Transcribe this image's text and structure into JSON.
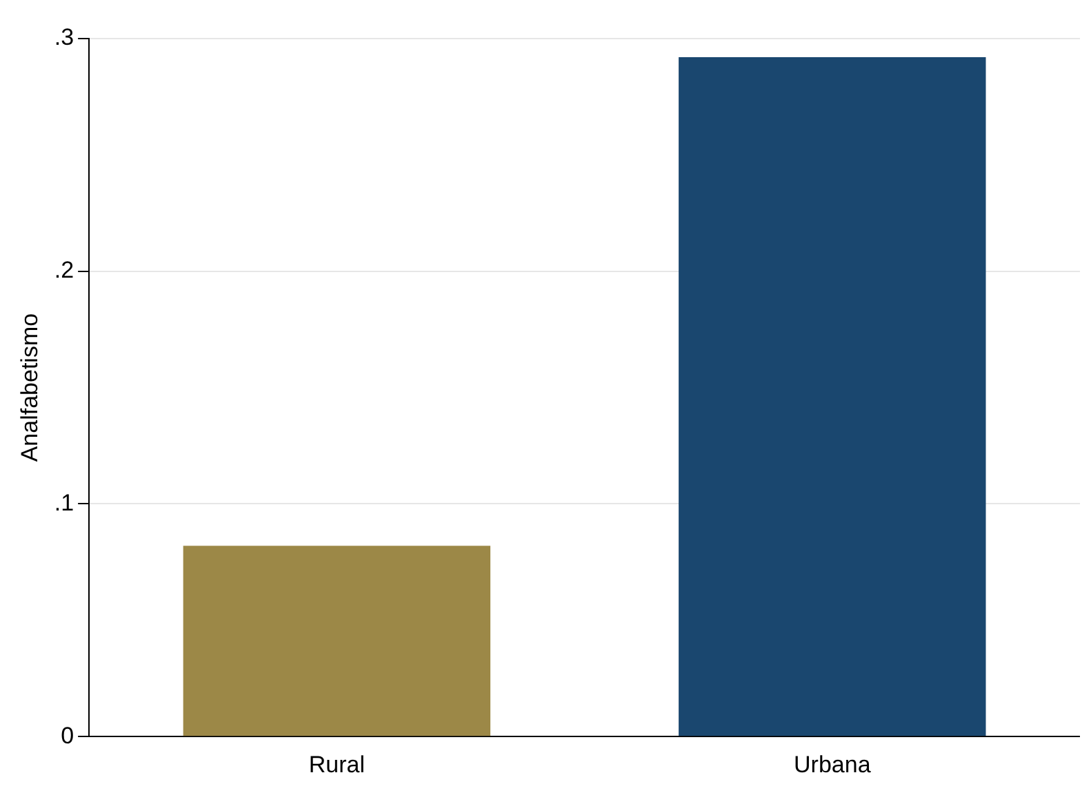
{
  "chart_data": {
    "type": "bar",
    "ylabel": "Analfabetismo",
    "categories": [
      "Rural",
      "Urbana"
    ],
    "values": [
      0.082,
      0.292
    ],
    "colors": [
      "#9c8847",
      "#1a476f"
    ],
    "ylim": [
      0,
      0.3
    ],
    "yticks": [
      {
        "value": 0,
        "label": "0"
      },
      {
        "value": 0.1,
        "label": ".1"
      },
      {
        "value": 0.2,
        "label": ".2"
      },
      {
        "value": 0.3,
        "label": ".3"
      }
    ],
    "grid": "y",
    "legend": false
  }
}
